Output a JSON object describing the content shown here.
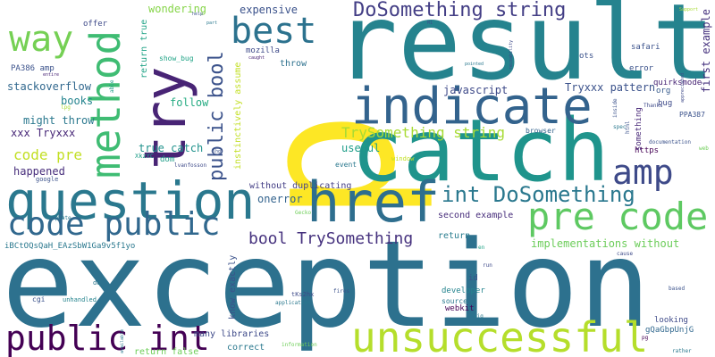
{
  "words": [
    {
      "text": "exception",
      "color": "#2d718e"
    },
    {
      "text": "p",
      "color": "#fde725"
    },
    {
      "text": "result",
      "color": "#25838e"
    },
    {
      "text": "catch",
      "color": "#1f948c"
    },
    {
      "text": "try",
      "color": "#482475"
    },
    {
      "text": "indicate",
      "color": "#33638d"
    },
    {
      "text": "question",
      "color": "#2a788e"
    },
    {
      "text": "href",
      "color": "#2e6e8e"
    },
    {
      "text": "method",
      "color": "#3fbc73"
    },
    {
      "text": "unsuccessful",
      "color": "#b5de2b"
    },
    {
      "text": "public int",
      "color": "#440154"
    },
    {
      "text": "code public",
      "color": "#31688e"
    },
    {
      "text": "pre code",
      "color": "#5ec962"
    },
    {
      "text": "amp",
      "color": "#3e4a89"
    },
    {
      "text": "way",
      "color": "#75d054"
    },
    {
      "text": "best",
      "color": "#2c728e"
    },
    {
      "text": "public bool",
      "color": "#3b528b"
    },
    {
      "text": "DoSomething string",
      "color": "#433e85"
    },
    {
      "text": "int DoSomething",
      "color": "#2a788e"
    },
    {
      "text": "bool TrySomething",
      "color": "#46327e"
    },
    {
      "text": "TrySomething string",
      "color": "#a8db34"
    },
    {
      "text": "code pre",
      "color": "#c2df23"
    },
    {
      "text": "implementations without",
      "color": "#6ccd5a"
    },
    {
      "text": "first example",
      "color": "#46327e"
    },
    {
      "text": "stackoverflow",
      "color": "#31688e"
    },
    {
      "text": "javascript",
      "color": "#3e4a89"
    },
    {
      "text": "Tryxxx pattern",
      "color": "#3b528b"
    },
    {
      "text": "expensive",
      "color": "#3b528b"
    },
    {
      "text": "wondering",
      "color": "#86d549"
    },
    {
      "text": "books",
      "color": "#25848e"
    },
    {
      "text": "might throw",
      "color": "#2a788e"
    },
    {
      "text": "xxx Tryxxx",
      "color": "#482878"
    },
    {
      "text": "return true",
      "color": "#20a386"
    },
    {
      "text": "follow",
      "color": "#25ab82"
    },
    {
      "text": "true catch",
      "color": "#20928c"
    },
    {
      "text": "happened",
      "color": "#472d7b"
    },
    {
      "text": "useful",
      "color": "#1f9e89"
    },
    {
      "text": "without duplicating",
      "color": "#433e85"
    },
    {
      "text": "onerror",
      "color": "#33638d"
    },
    {
      "text": "second example",
      "color": "#472d7b"
    },
    {
      "text": "return",
      "color": "#287c8e"
    },
    {
      "text": "know exactly",
      "color": "#3b528b"
    },
    {
      "text": "many libraries",
      "color": "#3e4a89"
    },
    {
      "text": "correct",
      "color": "#2a788e"
    },
    {
      "text": "return false",
      "color": "#6ece58"
    },
    {
      "text": "throw",
      "color": "#2d718e"
    },
    {
      "text": "mozilla",
      "color": "#3e4a89"
    },
    {
      "text": "instinctively assume",
      "color": "#c2df23"
    },
    {
      "text": "dom",
      "color": "#1f9e89"
    },
    {
      "text": "offer",
      "color": "#3e4a89"
    },
    {
      "text": "PA386 amp",
      "color": "#3b528b"
    },
    {
      "text": "org",
      "color": "#375a8c"
    },
    {
      "text": "https",
      "color": "#440154"
    },
    {
      "text": "bug",
      "color": "#3e4a89"
    },
    {
      "text": "quirksmode",
      "color": "#482475"
    },
    {
      "text": "error",
      "color": "#3b528b"
    },
    {
      "text": "safari",
      "color": "#3b528b"
    },
    {
      "text": "ots",
      "color": "#3b528b"
    },
    {
      "text": "webkit",
      "color": "#440154"
    },
    {
      "text": "id",
      "color": "#3b528b"
    },
    {
      "text": "developer",
      "color": "#25848e"
    },
    {
      "text": "source",
      "color": "#2a788e"
    },
    {
      "text": "looking",
      "color": "#3e4a89"
    },
    {
      "text": "gQaGbpUnjG",
      "color": "#31688e"
    },
    {
      "text": "iBCtOQsQaH_EAzSbW1Ga9v5f1yo",
      "color": "#2a788e"
    },
    {
      "text": "something",
      "color": "#482878"
    },
    {
      "text": "PPA387",
      "color": "#3b528b"
    },
    {
      "text": "show_bug",
      "color": "#20a386"
    },
    {
      "text": "event",
      "color": "#2a788e"
    },
    {
      "text": "browser",
      "color": "#33638d"
    },
    {
      "text": "window",
      "color": "#c2df23"
    },
    {
      "text": "XkzYC",
      "color": "#1f9e89"
    },
    {
      "text": "lvanfosson",
      "color": "#3e4a89"
    },
    {
      "text": "google",
      "color": "#3b528b"
    },
    {
      "text": "Update",
      "color": "#2a788e"
    },
    {
      "text": "cgi",
      "color": "#3b528b"
    },
    {
      "text": "unhandled",
      "color": "#25848e"
    },
    {
      "text": "dq",
      "color": "#2a788e"
    },
    {
      "text": "tKs2hx",
      "color": "#3e4a89"
    },
    {
      "text": "application",
      "color": "#2a788e"
    },
    {
      "text": "information",
      "color": "#6ece58"
    },
    {
      "text": "fires",
      "color": "#3b528b"
    },
    {
      "text": "sig",
      "color": "#2a788e"
    },
    {
      "text": "run",
      "color": "#3e4a89"
    },
    {
      "text": "pg",
      "color": "#440154"
    },
    {
      "text": "rather",
      "color": "#2a788e"
    },
    {
      "text": "based",
      "color": "#3b528b"
    },
    {
      "text": "cause",
      "color": "#3e4a89"
    },
    {
      "text": "en",
      "color": "#20a386"
    },
    {
      "text": "Gecko",
      "color": "#6ece58"
    },
    {
      "text": "documentation",
      "color": "#3b528b"
    },
    {
      "text": "spec",
      "color": "#2a788e"
    },
    {
      "text": "inside",
      "color": "#3b528b"
    },
    {
      "text": "Thanks",
      "color": "#3e4a89"
    },
    {
      "text": "web",
      "color": "#6ece58"
    },
    {
      "text": "html",
      "color": "#3b528b"
    },
    {
      "text": "appreciated",
      "color": "#3e4a89"
    },
    {
      "text": "Support",
      "color": "#a8db34"
    },
    {
      "text": "help",
      "color": "#3b528b"
    },
    {
      "text": "part",
      "color": "#2a788e"
    },
    {
      "text": "M1",
      "color": "#3b528b"
    },
    {
      "text": "caught",
      "color": "#482475"
    },
    {
      "text": "pointed",
      "color": "#2a788e"
    },
    {
      "text": "reusability",
      "color": "#3e4a89"
    },
    {
      "text": "lpg",
      "color": "#a8db34"
    },
    {
      "text": "lhg",
      "color": "#3b528b"
    },
    {
      "text": "entire",
      "color": "#482475"
    },
    {
      "text": "able",
      "color": "#1f9e89"
    },
    {
      "text": "available",
      "color": "#2a788e"
    }
  ]
}
